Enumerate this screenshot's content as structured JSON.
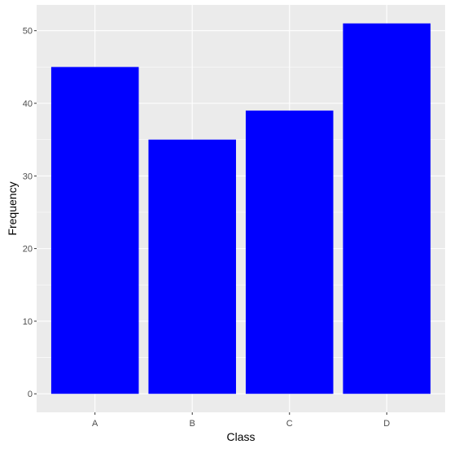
{
  "chart_data": {
    "type": "bar",
    "title": "",
    "xlabel": "Class",
    "ylabel": "Frequency",
    "categories": [
      "A",
      "B",
      "C",
      "D"
    ],
    "values": [
      45,
      35,
      39,
      51
    ],
    "ylim": [
      -2.55,
      53.55
    ],
    "yticks": [
      0,
      10,
      20,
      30,
      40,
      50
    ],
    "ytick_labels": [
      "0",
      "10",
      "20",
      "30",
      "40",
      "50"
    ],
    "grid": true,
    "legend": "none",
    "colors": {
      "bar": "#0000ff",
      "panel_background": "#ebebeb",
      "grid": "#ffffff"
    }
  }
}
